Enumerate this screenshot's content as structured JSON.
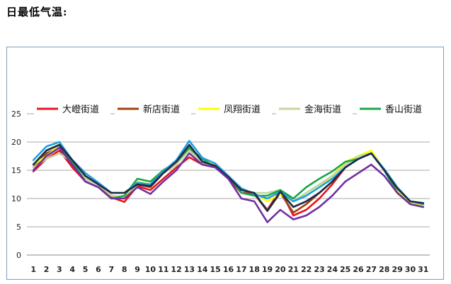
{
  "heading": "日最低气温:",
  "chart_data": {
    "type": "line",
    "title": "",
    "xlabel": "",
    "ylabel": "",
    "ylim": [
      0,
      25
    ],
    "yticks": [
      0,
      5,
      10,
      15,
      20,
      25
    ],
    "grid": "horizontal",
    "legend_position": "top",
    "x": [
      1,
      2,
      3,
      4,
      5,
      6,
      7,
      8,
      9,
      10,
      11,
      12,
      13,
      14,
      15,
      16,
      17,
      18,
      19,
      20,
      21,
      22,
      23,
      24,
      25,
      26,
      27,
      28,
      29,
      30,
      31
    ],
    "series": [
      {
        "name": "大嶝街道",
        "color": "#e8141c",
        "values": [
          14.8,
          17.0,
          18.5,
          15.5,
          13.0,
          12.0,
          10.2,
          9.4,
          12.2,
          11.5,
          13.5,
          15.5,
          17.3,
          16.0,
          15.5,
          13.5,
          11.0,
          10.8,
          8.0,
          11.5,
          7.0,
          8.0,
          10.0,
          12.5,
          15.5,
          17.0,
          18.0,
          15.0,
          11.5,
          9.2,
          8.8
        ]
      },
      {
        "name": "新店街道",
        "color": "#a0400c",
        "values": [
          15.5,
          18.0,
          19.0,
          16.0,
          13.5,
          12.5,
          10.5,
          10.2,
          12.5,
          12.0,
          14.5,
          16.0,
          19.0,
          16.5,
          15.5,
          13.8,
          11.5,
          10.8,
          7.8,
          11.0,
          7.5,
          9.0,
          11.0,
          13.0,
          15.5,
          17.0,
          18.0,
          15.0,
          11.5,
          9.5,
          9.0
        ]
      },
      {
        "name": "凤翔街道",
        "color": "#ffff00",
        "values": [
          16.0,
          17.5,
          19.5,
          16.5,
          14.0,
          12.5,
          10.5,
          10.2,
          13.0,
          12.5,
          14.5,
          16.5,
          19.5,
          16.5,
          16.0,
          14.0,
          11.5,
          11.0,
          9.5,
          10.8,
          9.5,
          10.5,
          12.0,
          14.0,
          16.5,
          17.5,
          18.5,
          15.0,
          11.5,
          9.2,
          8.8
        ]
      },
      {
        "name": "金海街道",
        "color": "#c4d79b",
        "values": [
          15.5,
          17.0,
          18.0,
          16.5,
          13.5,
          12.5,
          10.5,
          10.0,
          12.5,
          12.5,
          14.5,
          16.0,
          18.5,
          16.5,
          15.5,
          14.0,
          11.5,
          11.0,
          11.0,
          11.5,
          9.5,
          11.0,
          12.5,
          14.0,
          16.0,
          17.5,
          18.0,
          15.0,
          11.0,
          9.0,
          8.5
        ]
      },
      {
        "name": "香山街道",
        "color": "#1aa64a",
        "values": [
          16.0,
          18.5,
          19.5,
          16.5,
          13.0,
          12.0,
          10.0,
          10.5,
          13.5,
          13.0,
          15.0,
          16.5,
          19.0,
          17.0,
          15.5,
          14.0,
          11.0,
          10.5,
          10.5,
          11.5,
          10.0,
          12.0,
          13.5,
          14.8,
          16.5,
          17.0,
          18.0,
          15.0,
          11.0,
          9.0,
          8.5
        ]
      },
      {
        "name": "",
        "color": "#1f9fe0",
        "values": [
          16.8,
          19.2,
          20.0,
          16.8,
          14.5,
          12.8,
          11.0,
          11.0,
          12.8,
          12.5,
          14.8,
          16.8,
          20.2,
          17.2,
          16.2,
          14.0,
          11.8,
          10.8,
          10.0,
          11.2,
          9.5,
          10.5,
          12.0,
          13.5,
          15.5,
          17.0,
          18.0,
          15.2,
          12.0,
          9.5,
          9.0
        ]
      },
      {
        "name": "",
        "color": "#1c2b4a",
        "values": [
          16.0,
          18.5,
          19.5,
          16.8,
          14.0,
          12.5,
          11.0,
          11.0,
          12.5,
          12.2,
          14.5,
          16.5,
          19.5,
          16.5,
          15.8,
          13.8,
          11.5,
          11.0,
          7.8,
          11.2,
          8.5,
          9.5,
          11.0,
          13.0,
          15.5,
          17.0,
          18.0,
          15.0,
          11.8,
          9.5,
          9.2
        ]
      },
      {
        "name": "",
        "color": "#7030a0",
        "values": [
          15.0,
          17.5,
          19.0,
          16.0,
          13.0,
          12.0,
          10.0,
          10.0,
          12.0,
          10.8,
          13.0,
          15.0,
          18.0,
          16.0,
          15.5,
          13.5,
          10.0,
          9.5,
          5.8,
          8.0,
          6.3,
          7.0,
          8.5,
          10.5,
          13.0,
          14.5,
          16.0,
          14.0,
          11.0,
          9.0,
          8.5
        ]
      }
    ]
  }
}
